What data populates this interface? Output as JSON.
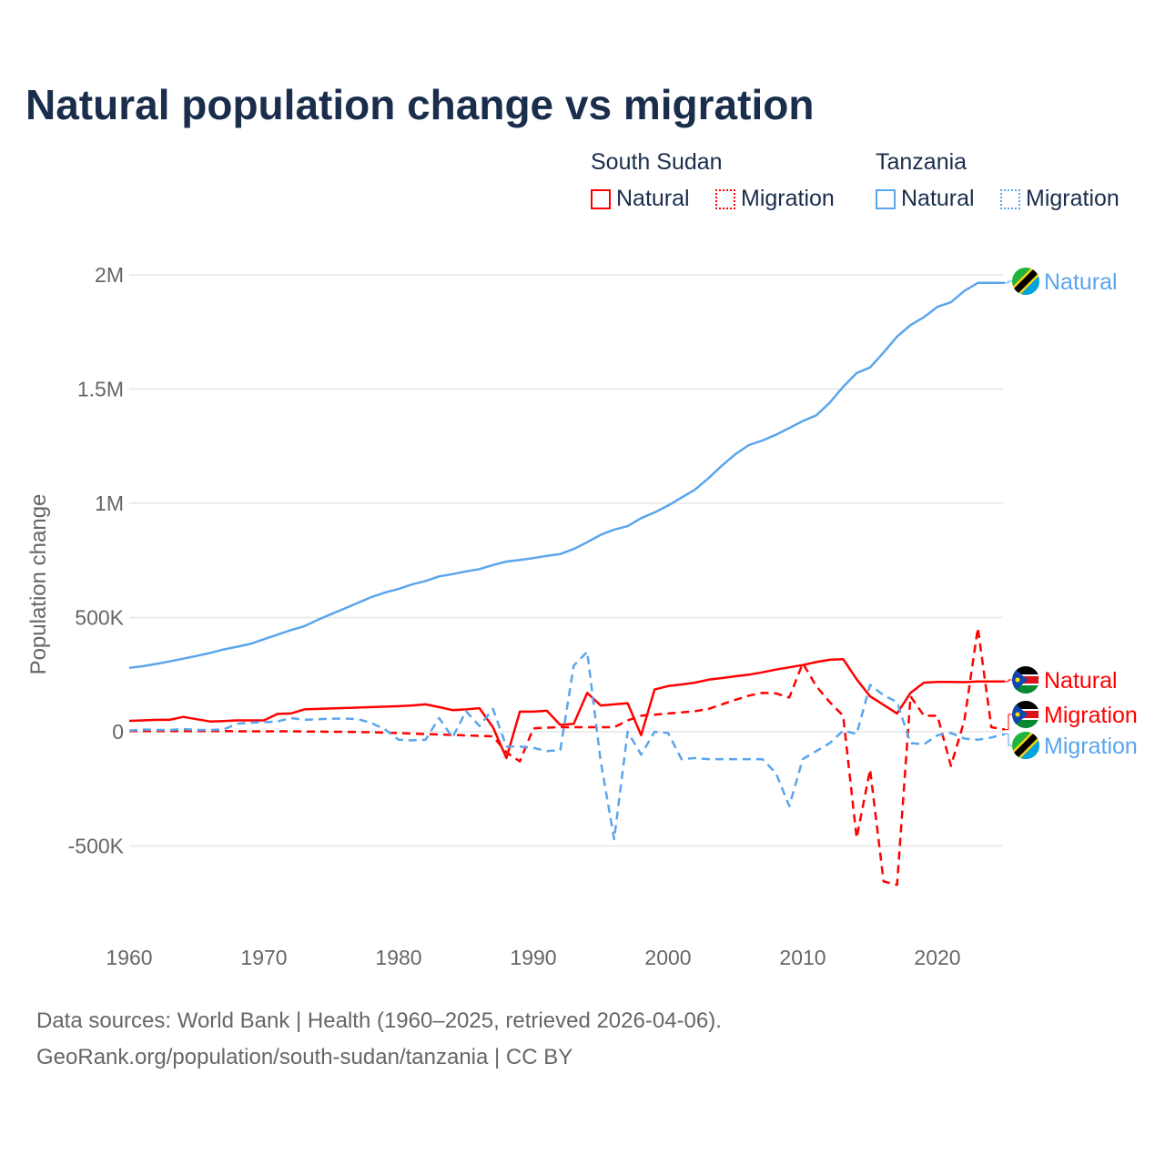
{
  "title": "Natural population change vs migration",
  "legend": {
    "groups": [
      {
        "name": "South Sudan",
        "items": [
          "Natural",
          "Migration"
        ]
      },
      {
        "name": "Tanzania",
        "items": [
          "Natural",
          "Migration"
        ]
      }
    ]
  },
  "footer": {
    "line1": "Data sources: World Bank | Health (1960–2025, retrieved 2026-04-06).",
    "line2": "GeoRank.org/population/south-sudan/tanzania | CC BY"
  },
  "colors": {
    "south_sudan": "#ff0000",
    "tanzania": "#5aa5ec"
  },
  "chart_data": {
    "type": "line",
    "title": "Natural population change vs migration",
    "xlabel": "",
    "ylabel": "Population change",
    "xlim": [
      1960,
      2025
    ],
    "ylim": [
      -700000,
      2000000
    ],
    "x_ticks": [
      1960,
      1970,
      1980,
      1990,
      2000,
      2010,
      2020
    ],
    "x_tick_labels": [
      "1960",
      "1970",
      "1980",
      "1990",
      "2000",
      "2010",
      "2020"
    ],
    "y_ticks": [
      -500000,
      0,
      500000,
      1000000,
      1500000,
      2000000
    ],
    "y_tick_labels": [
      "-500K",
      "0",
      "500K",
      "1M",
      "1.5M",
      "2M"
    ],
    "grid": true,
    "legend_position": "top-right",
    "x_start": 1960,
    "units": "thousands",
    "series": [
      {
        "name": "Tanzania Natural",
        "country": "Tanzania",
        "kind": "Natural",
        "end_label": "Natural",
        "color": "#5aa5ec",
        "dashed": false,
        "values": [
          280,
          287,
          297,
          308,
          320,
          332,
          345,
          360,
          372,
          385,
          405,
          425,
          445,
          462,
          490,
          515,
          540,
          565,
          590,
          610,
          625,
          645,
          660,
          680,
          690,
          702,
          712,
          730,
          745,
          752,
          760,
          770,
          778,
          800,
          830,
          862,
          885,
          900,
          935,
          960,
          990,
          1025,
          1060,
          1110,
          1165,
          1215,
          1255,
          1275,
          1300,
          1330,
          1360,
          1385,
          1440,
          1510,
          1570,
          1595,
          1660,
          1730,
          1780,
          1815,
          1860,
          1880,
          1930,
          1965,
          1965,
          1965
        ]
      },
      {
        "name": "South Sudan Natural",
        "country": "South Sudan",
        "kind": "Natural",
        "end_label": "Natural",
        "color": "#ff0000",
        "dashed": false,
        "values": [
          48,
          50,
          52,
          52,
          65,
          55,
          45,
          47,
          50,
          50,
          50,
          78,
          80,
          98,
          100,
          102,
          104,
          106,
          108,
          110,
          112,
          115,
          120,
          108,
          95,
          98,
          103,
          20,
          -115,
          88,
          88,
          92,
          30,
          35,
          170,
          115,
          120,
          125,
          -15,
          185,
          200,
          207,
          215,
          228,
          235,
          243,
          250,
          260,
          272,
          282,
          292,
          305,
          315,
          318,
          230,
          155,
          118,
          80,
          170,
          215,
          218,
          218,
          217,
          220,
          220,
          220
        ]
      },
      {
        "name": "South Sudan Migration",
        "country": "South Sudan",
        "kind": "Migration",
        "end_label": "Migration",
        "color": "#ff0000",
        "dashed": true,
        "values": [
          3,
          3,
          3,
          3,
          3,
          3,
          3,
          3,
          2,
          2,
          2,
          2,
          2,
          1,
          1,
          0,
          0,
          -1,
          -2,
          -4,
          -6,
          -8,
          -10,
          -12,
          -14,
          -16,
          -18,
          -20,
          -90,
          -130,
          15,
          18,
          20,
          20,
          20,
          20,
          20,
          50,
          70,
          75,
          80,
          85,
          90,
          100,
          120,
          140,
          158,
          170,
          168,
          150,
          300,
          200,
          130,
          70,
          -465,
          -165,
          -655,
          -670,
          155,
          70,
          70,
          -150,
          50,
          455,
          20,
          10
        ]
      },
      {
        "name": "Tanzania Migration",
        "country": "Tanzania",
        "kind": "Migration",
        "end_label": "Migration",
        "color": "#5aa5ec",
        "dashed": true,
        "values": [
          5,
          10,
          8,
          8,
          12,
          8,
          8,
          10,
          35,
          40,
          42,
          45,
          60,
          52,
          55,
          57,
          58,
          55,
          38,
          10,
          -35,
          -38,
          -35,
          60,
          -25,
          90,
          25,
          100,
          -65,
          -65,
          -70,
          -85,
          -80,
          290,
          350,
          -130,
          -470,
          0,
          -100,
          0,
          -5,
          -120,
          -115,
          -120,
          -120,
          -120,
          -120,
          -120,
          -180,
          -325,
          -120,
          -85,
          -50,
          5,
          -10,
          205,
          160,
          130,
          -50,
          -55,
          -15,
          -5,
          -30,
          -35,
          -25,
          -10
        ]
      }
    ]
  }
}
